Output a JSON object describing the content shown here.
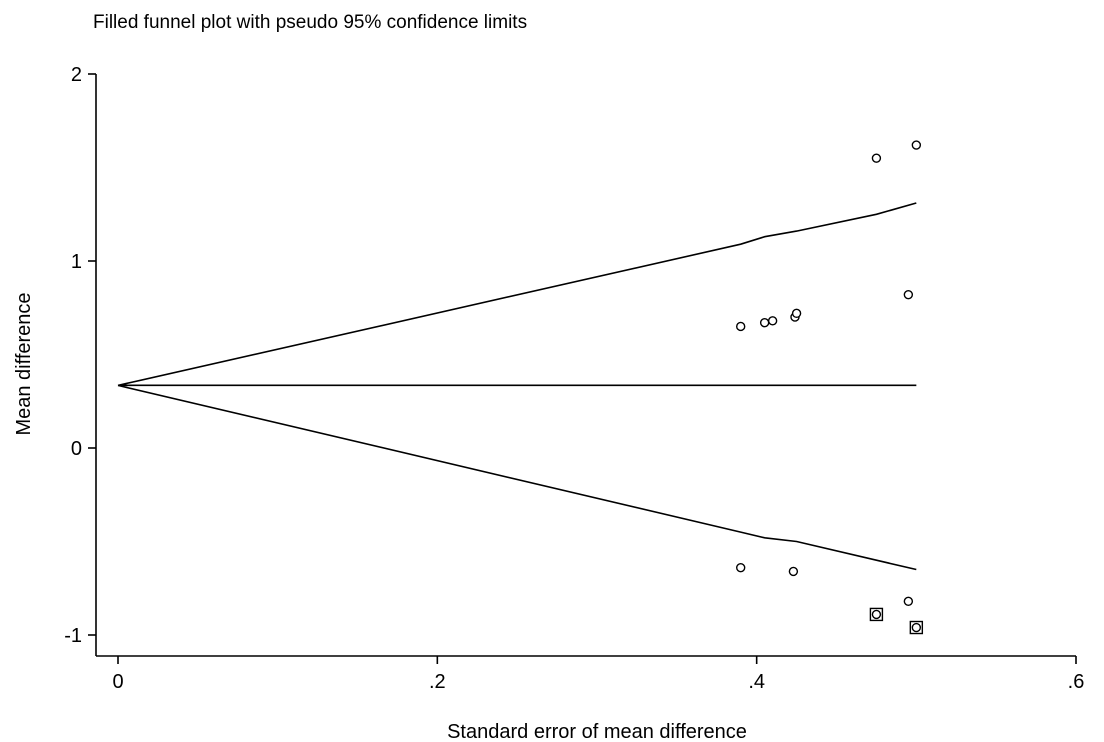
{
  "chart_data": {
    "type": "scatter",
    "title": "Filled funnel plot with pseudo 95% confidence limits",
    "xlabel": "Standard error of mean difference",
    "ylabel": "Mean difference",
    "xlim": [
      0,
      0.6
    ],
    "ylim": [
      -1,
      2
    ],
    "x_ticks": [
      {
        "value": 0,
        "label": "0"
      },
      {
        "value": 0.2,
        "label": ".2"
      },
      {
        "value": 0.4,
        "label": ".4"
      },
      {
        "value": 0.6,
        "label": ".6"
      }
    ],
    "y_ticks": [
      {
        "value": -1,
        "label": "-1"
      },
      {
        "value": 0,
        "label": "0"
      },
      {
        "value": 1,
        "label": "1"
      },
      {
        "value": 2,
        "label": "2"
      }
    ],
    "pooled_estimate": 0.335,
    "pooled_line_end_se": 0.5,
    "funnel_upper": [
      [
        0,
        0.335
      ],
      [
        0.39,
        1.09
      ],
      [
        0.405,
        1.13
      ],
      [
        0.425,
        1.16
      ],
      [
        0.475,
        1.25
      ],
      [
        0.5,
        1.31
      ]
    ],
    "funnel_lower": [
      [
        0,
        0.335
      ],
      [
        0.39,
        -0.45
      ],
      [
        0.405,
        -0.48
      ],
      [
        0.425,
        -0.5
      ],
      [
        0.475,
        -0.6
      ],
      [
        0.5,
        -0.65
      ]
    ],
    "observed_studies": [
      {
        "se": 0.475,
        "md": 1.55
      },
      {
        "se": 0.5,
        "md": 1.62
      },
      {
        "se": 0.495,
        "md": 0.82
      },
      {
        "se": 0.39,
        "md": 0.65
      },
      {
        "se": 0.405,
        "md": 0.67
      },
      {
        "se": 0.41,
        "md": 0.68
      },
      {
        "se": 0.424,
        "md": 0.7
      },
      {
        "se": 0.425,
        "md": 0.72
      },
      {
        "se": 0.39,
        "md": -0.64
      },
      {
        "se": 0.423,
        "md": -0.66
      },
      {
        "se": 0.495,
        "md": -0.82
      },
      {
        "se": 0.475,
        "md": -0.89
      },
      {
        "se": 0.5,
        "md": -0.96
      }
    ],
    "filled_studies": [
      {
        "se": 0.475,
        "md": -0.89
      },
      {
        "se": 0.5,
        "md": -0.96
      }
    ],
    "grid": false,
    "legend": "none"
  }
}
